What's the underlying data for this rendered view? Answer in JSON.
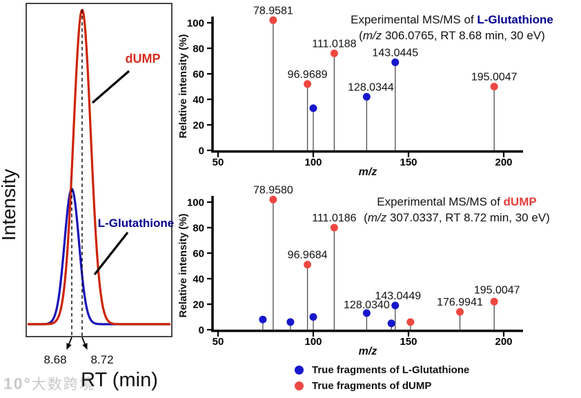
{
  "figure": {
    "watermark_logo": "10°",
    "watermark_text": "大数跨境"
  },
  "colors": {
    "stem": "#4d4d4d",
    "axis": "#000000"
  },
  "legend": {
    "items": [
      {
        "color": "#1717cc",
        "label": "True fragments of L-Glutathione"
      },
      {
        "color": "#ee4741",
        "label": "True fragments of dUMP"
      }
    ]
  },
  "chart_data": [
    {
      "id": "chromatogram",
      "type": "line",
      "xlabel": "RT (min)",
      "ylabel": "Intensity",
      "rt_tick_labels": [
        "8.68",
        "8.72"
      ],
      "series": [
        {
          "name": "dUMP",
          "color": "#cc2505",
          "label_color": "#d22d1f",
          "peak_rt_min": 8.72,
          "relative_peak_height": 1.0
        },
        {
          "name": "L-Glutathione",
          "color": "#1a12b8",
          "label_color": "#00008b",
          "peak_rt_min": 8.68,
          "relative_peak_height": 0.43
        }
      ]
    },
    {
      "id": "msms-l-glutathione",
      "type": "stem",
      "title_prefix": "Experimental MS/MS of ",
      "compound": "L-Glutathione",
      "compound_color": "#00008b",
      "subtitle_open": "(",
      "subtitle_italic": "m/z",
      "subtitle_rest": " 306.0765, RT 8.68 min, 30 eV)",
      "precursor_mz": 306.0765,
      "rt_min": 8.68,
      "collision_energy_eV": 30,
      "xlabel": "m/z",
      "ylabel": "Relative intensity (%)",
      "xlim": [
        50,
        212
      ],
      "ylim": [
        0,
        105
      ],
      "xticks": [
        50,
        100,
        150,
        200
      ],
      "yticks": [
        0,
        20,
        40,
        60,
        80,
        100
      ],
      "peaks": [
        {
          "mz": 78.9581,
          "intensity": 102,
          "label": "78.9581",
          "fragment_of": "dUMP"
        },
        {
          "mz": 96.9689,
          "intensity": 52,
          "label": "96.9689",
          "fragment_of": "dUMP"
        },
        {
          "mz": 100.0,
          "intensity": 33,
          "label": "",
          "fragment_of": "L-Glutathione"
        },
        {
          "mz": 111.0188,
          "intensity": 76,
          "label": "111.0188",
          "fragment_of": "dUMP"
        },
        {
          "mz": 128.0344,
          "intensity": 42,
          "label": "128.0344",
          "fragment_of": "L-Glutathione",
          "label_dx": 6
        },
        {
          "mz": 143.0445,
          "intensity": 69,
          "label": "143.0445",
          "fragment_of": "L-Glutathione"
        },
        {
          "mz": 195.0047,
          "intensity": 50,
          "label": "195.0047",
          "fragment_of": "dUMP"
        }
      ]
    },
    {
      "id": "msms-dump",
      "type": "stem",
      "title_prefix": "Experimental MS/MS of ",
      "compound": "dUMP",
      "compound_color": "#e23f3a",
      "subtitle_open": "(",
      "subtitle_italic": "m/z",
      "subtitle_rest": " 307.0337, RT 8.72 min, 30 eV)",
      "precursor_mz": 307.0337,
      "rt_min": 8.72,
      "collision_energy_eV": 30,
      "xlabel": "m/z",
      "ylabel": "Relative intensity (%)",
      "xlim": [
        50,
        212
      ],
      "ylim": [
        0,
        105
      ],
      "xticks": [
        50,
        100,
        150,
        200
      ],
      "yticks": [
        0,
        20,
        40,
        60,
        80,
        100
      ],
      "peaks": [
        {
          "mz": 73.5,
          "intensity": 8,
          "label": "",
          "fragment_of": "L-Glutathione"
        },
        {
          "mz": 78.958,
          "intensity": 102,
          "label": "78.9580",
          "fragment_of": "dUMP"
        },
        {
          "mz": 88.0,
          "intensity": 6,
          "label": "",
          "fragment_of": "L-Glutathione"
        },
        {
          "mz": 96.9684,
          "intensity": 51,
          "label": "96.9684",
          "fragment_of": "dUMP"
        },
        {
          "mz": 100.0,
          "intensity": 10,
          "label": "",
          "fragment_of": "L-Glutathione"
        },
        {
          "mz": 111.0186,
          "intensity": 80,
          "label": "111.0186",
          "fragment_of": "dUMP"
        },
        {
          "mz": 128.034,
          "intensity": 13,
          "label": "128.0340",
          "fragment_of": "L-Glutathione",
          "label_dy": 2
        },
        {
          "mz": 141.0,
          "intensity": 5,
          "label": "",
          "fragment_of": "L-Glutathione"
        },
        {
          "mz": 143.0449,
          "intensity": 19,
          "label": "143.0449",
          "fragment_of": "L-Glutathione",
          "label_dx": 4
        },
        {
          "mz": 151.0,
          "intensity": 6,
          "label": "",
          "fragment_of": "dUMP"
        },
        {
          "mz": 176.9941,
          "intensity": 14,
          "label": "176.9941",
          "fragment_of": "dUMP"
        },
        {
          "mz": 195.0047,
          "intensity": 22,
          "label": "195.0047",
          "fragment_of": "dUMP",
          "label_dx": 4,
          "label_dy": -3
        }
      ]
    }
  ]
}
